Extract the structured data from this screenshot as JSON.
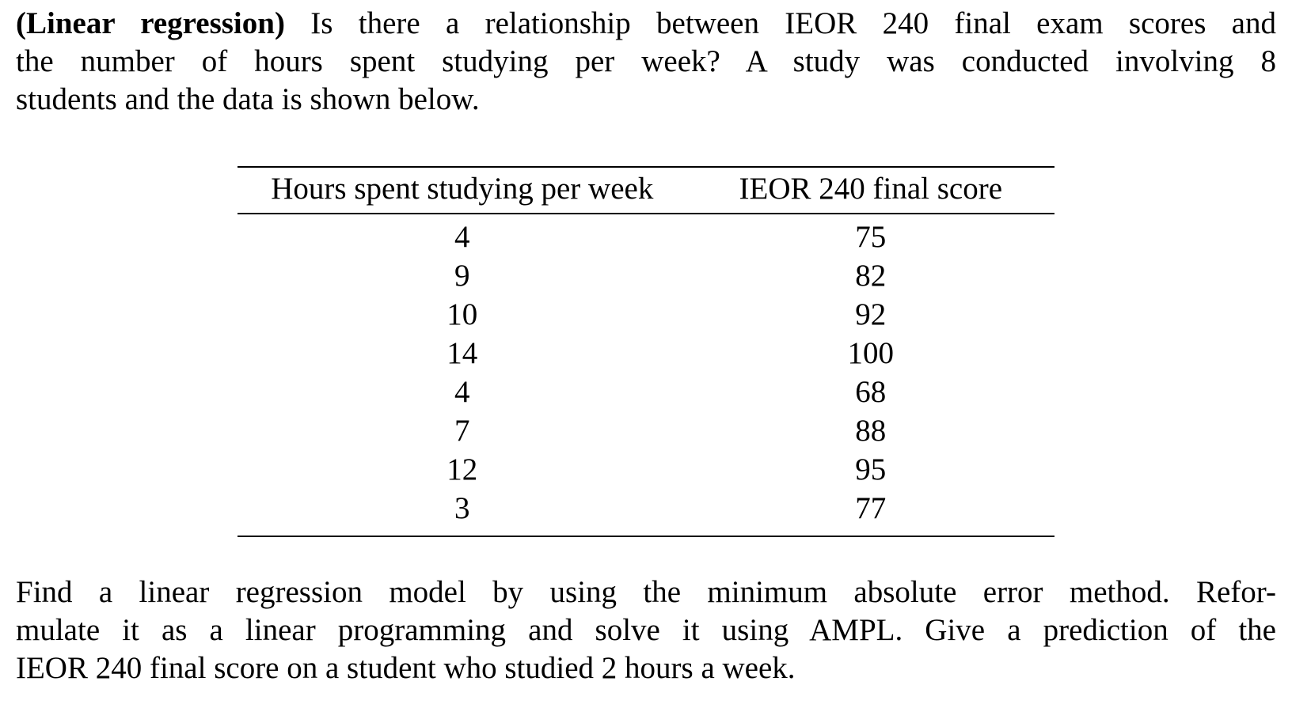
{
  "colors": {
    "background": "#ffffff",
    "text": "#000000",
    "rule": "#000000"
  },
  "paragraph1": {
    "bold_label": "(Linear regression)",
    "line1_rest": "Is there a relationship between IEOR 240 final exam scores and",
    "line2": "the number of hours spent studying per week?  A study was conducted involving 8",
    "line3": "students and the data is shown below."
  },
  "table": {
    "columns": [
      "Hours spent studying per week",
      "IEOR 240 final score"
    ],
    "rows": [
      {
        "hours": "4",
        "score": "75"
      },
      {
        "hours": "9",
        "score": "82"
      },
      {
        "hours": "10",
        "score": "92"
      },
      {
        "hours": "14",
        "score": "100"
      },
      {
        "hours": "4",
        "score": "68"
      },
      {
        "hours": "7",
        "score": "88"
      },
      {
        "hours": "12",
        "score": "95"
      },
      {
        "hours": "3",
        "score": "77"
      }
    ]
  },
  "paragraph2": {
    "line1": "Find a linear regression model by using the minimum absolute error method.  Refor-",
    "line2": "mulate it as a linear programming and solve it using AMPL. Give a prediction of the",
    "line3": "IEOR 240 final score on a student who studied 2 hours a week."
  }
}
